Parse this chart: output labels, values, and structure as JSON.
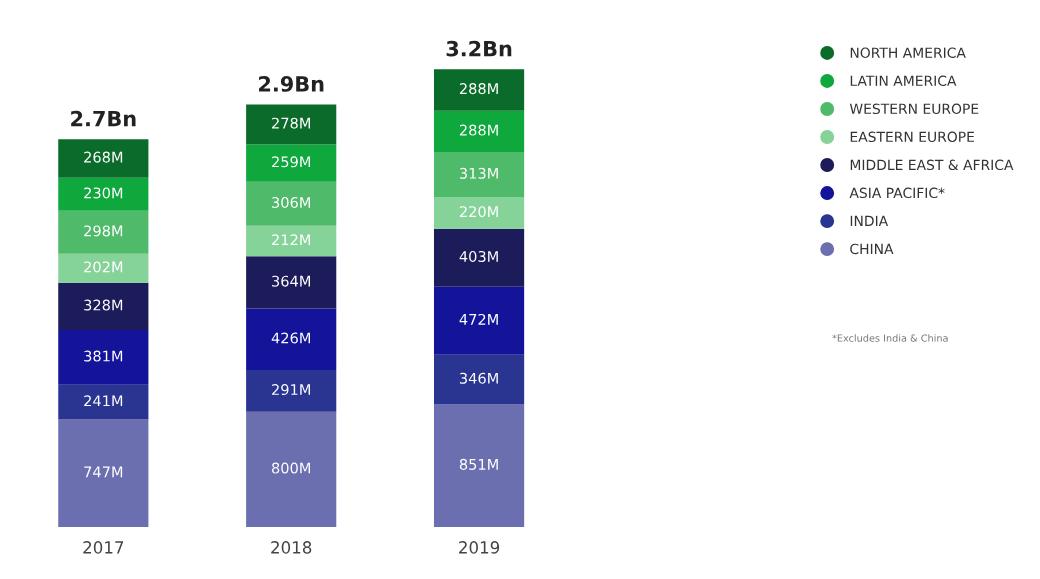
{
  "chart_data": {
    "type": "bar",
    "stacked": true,
    "categories": [
      "2017",
      "2018",
      "2019"
    ],
    "series": [
      {
        "name": "CHINA",
        "color": "#6b6fb0",
        "values": [
          747,
          800,
          851
        ],
        "value_labels": [
          "747M",
          "800M",
          "851M"
        ]
      },
      {
        "name": "INDIA",
        "color": "#2a3592",
        "values": [
          241,
          291,
          346
        ],
        "value_labels": [
          "241M",
          "291M",
          "346M"
        ]
      },
      {
        "name": "ASIA PACIFIC*",
        "color": "#14149a",
        "values": [
          381,
          426,
          472
        ],
        "value_labels": [
          "381M",
          "426M",
          "472M"
        ]
      },
      {
        "name": "MIDDLE EAST & AFRICA",
        "color": "#1d1c5a",
        "values": [
          328,
          364,
          403
        ],
        "value_labels": [
          "328M",
          "364M",
          "403M"
        ]
      },
      {
        "name": "EASTERN EUROPE",
        "color": "#86d39a",
        "values": [
          202,
          212,
          220
        ],
        "value_labels": [
          "202M",
          "212M",
          "220M"
        ]
      },
      {
        "name": "WESTERN EUROPE",
        "color": "#4fba6a",
        "values": [
          298,
          306,
          313
        ],
        "value_labels": [
          "298M",
          "306M",
          "313M"
        ]
      },
      {
        "name": "LATIN AMERICA",
        "color": "#0fa83c",
        "values": [
          230,
          259,
          288
        ],
        "value_labels": [
          "230M",
          "259M",
          "288M"
        ]
      },
      {
        "name": "NORTH AMERICA",
        "color": "#0b6b2b",
        "values": [
          268,
          278,
          288
        ],
        "value_labels": [
          "268M",
          "278M",
          "288M"
        ]
      }
    ],
    "legend": "top right",
    "marker": "circle",
    "grid": false,
    "annotations": [
      {
        "text": "2.7Bn",
        "x": "2017",
        "y": 2695
      },
      {
        "text": "2.9Bn",
        "x": "2018",
        "y": 2936
      },
      {
        "text": "3.2Bn",
        "x": "2019",
        "y": 3181
      },
      "*Excludes India & China"
    ]
  }
}
